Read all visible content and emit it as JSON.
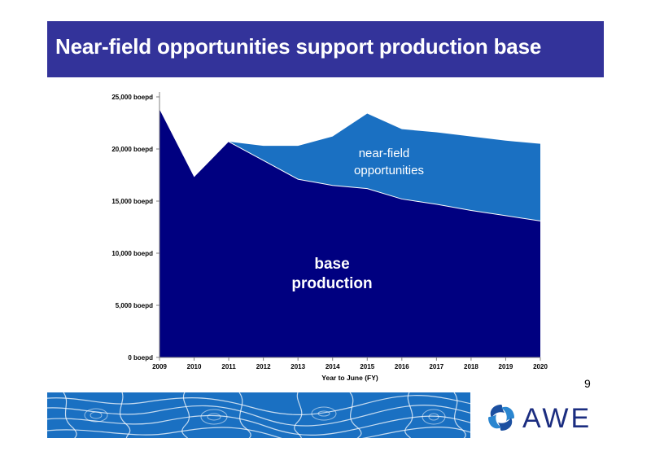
{
  "slide": {
    "title": "Near-field opportunities support production base",
    "page_number": "9"
  },
  "logo": {
    "text": "AWE",
    "icon": "awe-swirl-icon"
  },
  "colors": {
    "title_bar": "#33339a",
    "base_production": "#000080",
    "near_field": "#1a70c2",
    "footer_band": "#1a70c2",
    "logo_text": "#1b2d80"
  },
  "chart_data": {
    "type": "area",
    "xlabel": "Year to June (FY)",
    "ylabel": "",
    "x": [
      "2009",
      "2010",
      "2011",
      "2012",
      "2013",
      "2014",
      "2015",
      "2016",
      "2017",
      "2018",
      "2019",
      "2020"
    ],
    "ylim": [
      0,
      25000
    ],
    "ytick_labels": [
      "0 boepd",
      "5,000 boepd",
      "10,000 boepd",
      "15,000 boepd",
      "20,000 boepd",
      "25,000 boepd"
    ],
    "ytick_values": [
      0,
      5000,
      10000,
      15000,
      20000,
      25000
    ],
    "stacked": true,
    "series": [
      {
        "name": "base production",
        "label_lines": [
          "base",
          "production"
        ],
        "values": [
          23800,
          17300,
          20700,
          18900,
          17100,
          16500,
          16200,
          15200,
          14700,
          14100,
          13600,
          13100
        ]
      },
      {
        "name": "near-field opportunities",
        "label_lines": [
          "near-field",
          "opportunities"
        ],
        "values": [
          0,
          0,
          0,
          1400,
          3200,
          4700,
          7200,
          6700,
          6900,
          7100,
          7200,
          7400
        ]
      }
    ],
    "legend": "none",
    "grid": false
  }
}
